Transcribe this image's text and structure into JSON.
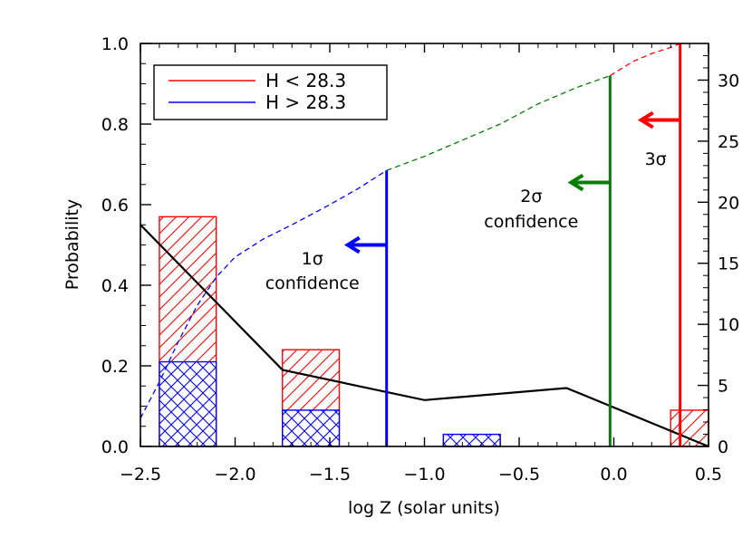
{
  "chart_data": {
    "type": "bar",
    "xlabel": "log Z (solar units)",
    "ylabel": "Probability",
    "xlim": [
      -2.5,
      0.5
    ],
    "ylim": [
      0,
      1.0
    ],
    "y2lim": [
      0,
      33
    ],
    "x_ticks": [
      -2.5,
      -2.0,
      -1.5,
      -1.0,
      -0.5,
      0.0,
      0.5
    ],
    "x_tick_labels": [
      "−2.5",
      "−2.0",
      "−1.5",
      "−1.0",
      "−0.5",
      "0.0",
      "0.5"
    ],
    "y_ticks": [
      0.0,
      0.2,
      0.4,
      0.6,
      0.8,
      1.0
    ],
    "y_tick_labels": [
      "0.0",
      "0.2",
      "0.4",
      "0.6",
      "0.8",
      "1.0"
    ],
    "y2_ticks": [
      0,
      5,
      10,
      15,
      20,
      25,
      30
    ],
    "y2_tick_labels": [
      "0",
      "5",
      "10",
      "15",
      "20",
      "25",
      "30"
    ],
    "legend": {
      "placement": "top-left",
      "entries": [
        {
          "label": "H < 28.3",
          "color": "#ff0000"
        },
        {
          "label": "H > 28.3",
          "color": "#0000ff"
        }
      ]
    },
    "bars": {
      "red": {
        "name": "H < 28.3",
        "color": "#ff0000",
        "items": [
          {
            "x0": -2.4,
            "x1": -2.1,
            "value": 0.57
          },
          {
            "x0": -1.75,
            "x1": -1.45,
            "value": 0.24
          },
          {
            "x0": -0.9,
            "x1": -0.6,
            "value": 0.03
          },
          {
            "x0": 0.3,
            "x1": 0.5,
            "value": 0.09
          }
        ]
      },
      "blue": {
        "name": "H > 28.3",
        "color": "#0000ff",
        "items": [
          {
            "x0": -2.4,
            "x1": -2.1,
            "value": 0.21
          },
          {
            "x0": -1.75,
            "x1": -1.45,
            "value": 0.09
          },
          {
            "x0": -0.9,
            "x1": -0.6,
            "value": 0.03
          }
        ]
      }
    },
    "black_curve": {
      "color": "#000000",
      "x": [
        -2.5,
        -1.75,
        -1.0,
        -0.25,
        0.5
      ],
      "y": [
        0.55,
        0.19,
        0.115,
        0.145,
        0.0
      ]
    },
    "cumulative_curve": {
      "x": [
        -2.5,
        -2.4,
        -2.3,
        -2.2,
        -2.1,
        -2.0,
        -1.85,
        -1.7,
        -1.5,
        -1.35,
        -1.2,
        -1.0,
        -0.8,
        -0.6,
        -0.4,
        -0.2,
        -0.02,
        0.1,
        0.2,
        0.3,
        0.35
      ],
      "y": [
        0.07,
        0.16,
        0.26,
        0.35,
        0.42,
        0.47,
        0.515,
        0.55,
        0.6,
        0.64,
        0.685,
        0.72,
        0.76,
        0.8,
        0.85,
        0.89,
        0.92,
        0.955,
        0.975,
        0.99,
        1.0
      ],
      "segments": [
        {
          "color": "#0000ff",
          "x_from": -2.5,
          "x_to": -1.2
        },
        {
          "color": "#008000",
          "x_from": -1.2,
          "x_to": -0.02
        },
        {
          "color": "#ff0000",
          "x_from": -0.02,
          "x_to": 0.35
        }
      ]
    },
    "confidence_lines": [
      {
        "name": "1 sigma",
        "x": -1.2,
        "top": 0.685,
        "arrow_y": 0.5,
        "color": "#0000ff",
        "sigma_label": "1σ",
        "label": "confidence"
      },
      {
        "name": "2 sigma",
        "x": -0.02,
        "top": 0.92,
        "arrow_y": 0.655,
        "color": "#008000",
        "sigma_label": "2σ",
        "label": "confidence"
      },
      {
        "name": "3 sigma",
        "x": 0.35,
        "top": 1.0,
        "arrow_y": 0.81,
        "color": "#ff0000",
        "sigma_label": "3σ",
        "label": ""
      }
    ]
  }
}
